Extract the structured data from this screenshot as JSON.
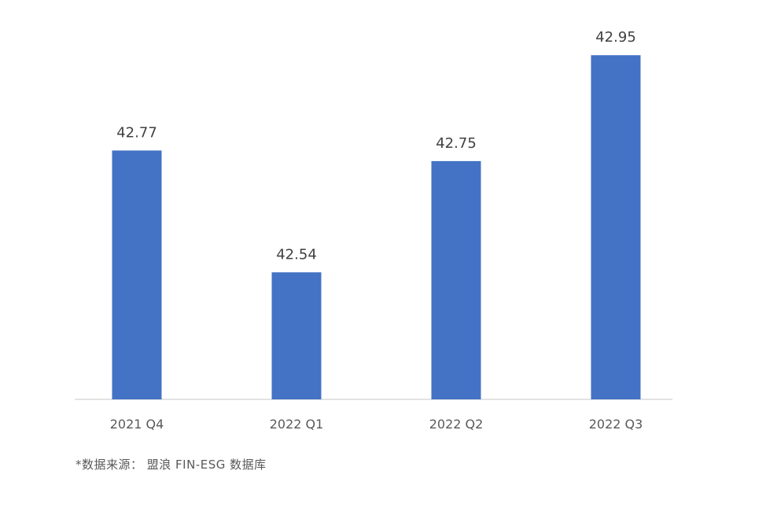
{
  "chart_data": {
    "type": "bar",
    "categories": [
      "2021 Q4",
      "2022 Q1",
      "2022 Q2",
      "2022 Q3"
    ],
    "values": [
      42.77,
      42.54,
      42.75,
      42.95
    ],
    "value_labels": [
      "42.77",
      "42.54",
      "42.75",
      "42.95"
    ],
    "title": "",
    "xlabel": "",
    "ylabel": "",
    "ylim": [
      42.3,
      42.98
    ],
    "grid": false,
    "legend": "none",
    "bar_color": "#4472C4"
  },
  "footer": {
    "source": "*数据来源： 盟浪 FIN-ESG 数据库"
  }
}
